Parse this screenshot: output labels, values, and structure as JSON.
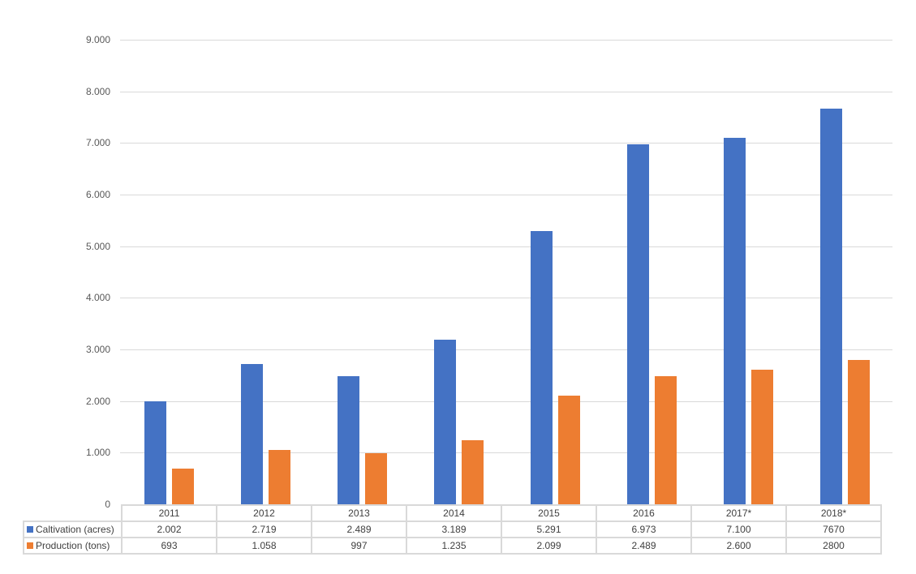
{
  "chart_data": {
    "type": "bar",
    "title": "",
    "xlabel": "",
    "ylabel": "",
    "ylim": [
      0,
      9000
    ],
    "grid": true,
    "legend_position": "data-table",
    "yticks": [
      "0",
      "1.000",
      "2.000",
      "3.000",
      "4.000",
      "5.000",
      "6.000",
      "7.000",
      "8.000",
      "9.000"
    ],
    "categories": [
      "2011",
      "2012",
      "2013",
      "2014",
      "2015",
      "2016",
      "2017*",
      "2018*"
    ],
    "series": [
      {
        "name": "Caltivation (acres)",
        "color": "#4472c4",
        "values": [
          2002,
          2719,
          2489,
          3189,
          5291,
          6973,
          7100,
          7670
        ],
        "labels": [
          "2.002",
          "2.719",
          "2.489",
          "3.189",
          "5.291",
          "6.973",
          "7.100",
          "7670"
        ]
      },
      {
        "name": "Production (tons)",
        "color": "#ed7d31",
        "values": [
          693,
          1058,
          997,
          1235,
          2099,
          2489,
          2600,
          2800
        ],
        "labels": [
          "693",
          "1.058",
          "997",
          "1.235",
          "2.099",
          "2.489",
          "2.600",
          "2800"
        ]
      }
    ]
  }
}
